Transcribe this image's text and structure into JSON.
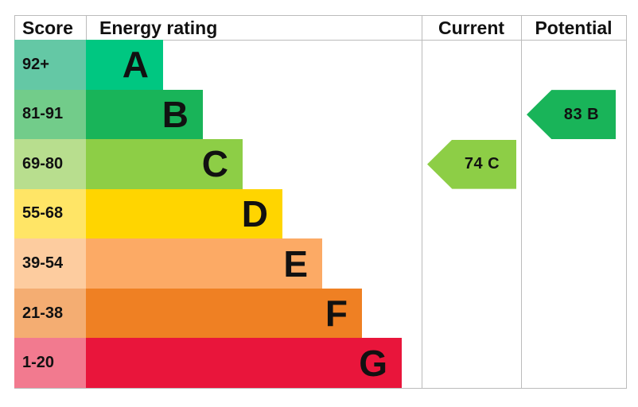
{
  "chart_data": {
    "type": "table",
    "headers": {
      "score": "Score",
      "rating": "Energy rating",
      "current": "Current",
      "potential": "Potential"
    },
    "bands": [
      {
        "range": "92+",
        "letter": "A",
        "color": "#00c781",
        "score_color": "#64c8a5"
      },
      {
        "range": "81-91",
        "letter": "B",
        "color": "#19b459",
        "score_color": "#72cc8a"
      },
      {
        "range": "69-80",
        "letter": "C",
        "color": "#8dce46",
        "score_color": "#b8de8e"
      },
      {
        "range": "55-68",
        "letter": "D",
        "color": "#ffd500",
        "score_color": "#ffe566"
      },
      {
        "range": "39-54",
        "letter": "E",
        "color": "#fcaa65",
        "score_color": "#fdcc9f"
      },
      {
        "range": "21-38",
        "letter": "F",
        "color": "#ef8023",
        "score_color": "#f4ad72"
      },
      {
        "range": "1-20",
        "letter": "G",
        "color": "#e9153b",
        "score_color": "#f27a8f"
      }
    ],
    "current": {
      "value": 74,
      "letter": "C",
      "label": "74  C",
      "band_index": 2,
      "color": "#8dce46"
    },
    "potential": {
      "value": 83,
      "letter": "B",
      "label": "83  B",
      "band_index": 1,
      "color": "#19b459"
    }
  }
}
